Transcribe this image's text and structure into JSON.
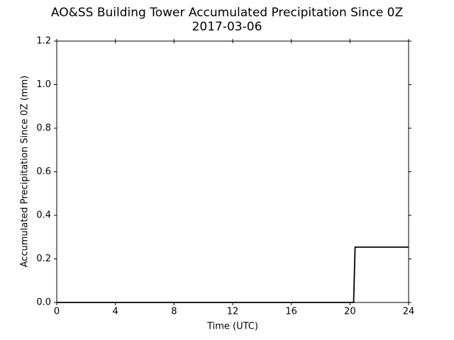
{
  "chart_data": {
    "type": "line",
    "title": "AO&SS Building Tower Accumulated Precipitation Since 0Z",
    "subtitle": "2017-03-06",
    "x_label": "Time (UTC)",
    "y_label": "Accumulated Precipitation Since 0Z (mm)",
    "x": [
      0,
      20.25,
      20.35,
      24
    ],
    "series": [
      {
        "color": "#000000",
        "values": [
          0,
          0,
          0.254,
          0.254
        ]
      }
    ],
    "xlim": [
      0,
      24
    ],
    "xticks": [
      0,
      4,
      8,
      12,
      16,
      20,
      24
    ],
    "ylim": [
      0,
      1.2
    ],
    "yticks": [
      {
        "value": 0,
        "label": "0.0"
      },
      0.2,
      0.4,
      0.6,
      0.8,
      {
        "value": 1,
        "label": "1.0"
      },
      1.2
    ],
    "grid": false
  }
}
